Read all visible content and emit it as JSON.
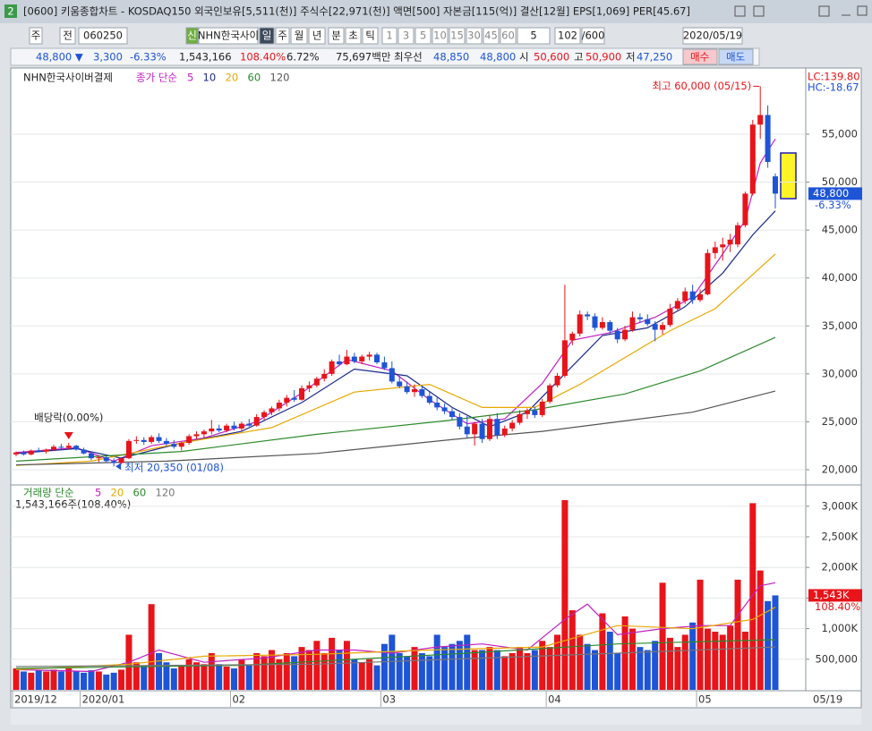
{
  "window": {
    "badge": "2",
    "title": "[0600] 키움종합차트 - KOSDAQ150 외국인보유[5,511(천)] 주식수[22,971(천)] 액면[500] 자본금[115(억)] 결산[12월] EPS[1,069] PER[45.67]"
  },
  "toolbar": {
    "buttons": [
      "주",
      "전",
      "060250",
      "신",
      "NHN한국사이",
      "일",
      "주",
      "월",
      "년",
      "분",
      "초",
      "틱",
      "1",
      "3",
      "5",
      "10",
      "15",
      "30",
      "45",
      "60",
      "5",
      "102",
      "/600",
      "2020/05/19"
    ]
  },
  "quote": {
    "fields": [
      "48,800 ▼",
      "3,300",
      "-6.33%",
      "1,543,166",
      "108.40%",
      "6.72%",
      "75,697백만",
      "최우선",
      "48,850",
      "48,800",
      "시",
      "50,600",
      "고",
      "50,900",
      "저",
      "47,250",
      "매수",
      "매도"
    ]
  },
  "chart_data": [
    {
      "type": "candlestick",
      "title": "NHN한국사이버결제",
      "legend_title": "종가 단순",
      "up_color": "#e8141a",
      "down_color": "#1e54d6",
      "grid": true,
      "ylim": [
        18600,
        60130
      ],
      "yticks": [
        {
          "value": 20000,
          "label": "20,000"
        },
        {
          "value": 25000,
          "label": "25,000"
        },
        {
          "value": 30000,
          "label": "30,000"
        },
        {
          "value": 35000,
          "label": "35,000"
        },
        {
          "value": 40000,
          "label": "40,000"
        },
        {
          "value": 45000,
          "label": "45,000"
        },
        {
          "value": 50000,
          "label": "50,000"
        },
        {
          "value": 55000,
          "label": "55,000"
        }
      ],
      "annotations": [
        "최고 60,000 (05/15)",
        "최저 20,350 (01/08)",
        "배당락(0.00%)"
      ],
      "corner_labels": [
        "LC:139.80",
        "HC:-18.67"
      ],
      "last_label": {
        "value": 48800,
        "label": "48,800",
        "change": "-6.33%"
      },
      "ohlc": [
        [
          21600,
          21900,
          21400,
          21800
        ],
        [
          21800,
          22000,
          21500,
          21600
        ],
        [
          21600,
          22100,
          21500,
          22000
        ],
        [
          22000,
          22300,
          21800,
          21900
        ],
        [
          21900,
          22200,
          21700,
          22100
        ],
        [
          22100,
          22600,
          22000,
          22400
        ],
        [
          22400,
          22700,
          22200,
          22300
        ],
        [
          22300,
          22800,
          22100,
          22500
        ],
        [
          22500,
          22600,
          22000,
          22100
        ],
        [
          22100,
          22300,
          21600,
          21700
        ],
        [
          21700,
          21900,
          21000,
          21200
        ],
        [
          21200,
          21500,
          20800,
          21300
        ],
        [
          21300,
          21400,
          20700,
          20900
        ],
        [
          20900,
          21200,
          20350,
          20700
        ],
        [
          20700,
          21300,
          20600,
          21200
        ],
        [
          21200,
          23200,
          21100,
          23000
        ],
        [
          23000,
          23500,
          22700,
          23100
        ],
        [
          23100,
          23400,
          22600,
          22900
        ],
        [
          22900,
          23600,
          22700,
          23400
        ],
        [
          23400,
          23800,
          22800,
          23000
        ],
        [
          23000,
          23300,
          22500,
          22700
        ],
        [
          22700,
          23100,
          22200,
          22400
        ],
        [
          22400,
          22900,
          22000,
          22800
        ],
        [
          22800,
          23700,
          22600,
          23500
        ],
        [
          23500,
          24000,
          23200,
          23700
        ],
        [
          23700,
          24200,
          23300,
          24000
        ],
        [
          24000,
          25200,
          23700,
          24300
        ],
        [
          24300,
          24700,
          23900,
          24100
        ],
        [
          24100,
          24800,
          23900,
          24600
        ],
        [
          24600,
          25000,
          24100,
          24300
        ],
        [
          24300,
          25000,
          24000,
          24800
        ],
        [
          24800,
          25300,
          24500,
          24600
        ],
        [
          24600,
          25800,
          24500,
          25500
        ],
        [
          25500,
          26200,
          25200,
          26000
        ],
        [
          26000,
          26600,
          25700,
          26400
        ],
        [
          26400,
          27300,
          26100,
          27000
        ],
        [
          27000,
          27800,
          26600,
          27500
        ],
        [
          27500,
          28300,
          27100,
          27300
        ],
        [
          27300,
          28800,
          27200,
          28500
        ],
        [
          28500,
          29200,
          28100,
          28800
        ],
        [
          28800,
          29700,
          28600,
          29500
        ],
        [
          29500,
          30500,
          29200,
          30000
        ],
        [
          30000,
          31500,
          29800,
          31300
        ],
        [
          31300,
          32000,
          30800,
          31000
        ],
        [
          31000,
          32500,
          30900,
          31800
        ],
        [
          31800,
          32200,
          31100,
          31300
        ],
        [
          31300,
          32000,
          31000,
          31800
        ],
        [
          31800,
          32300,
          31400,
          32000
        ],
        [
          32000,
          32200,
          31000,
          31200
        ],
        [
          31200,
          31800,
          30400,
          30600
        ],
        [
          30600,
          31300,
          29000,
          29200
        ],
        [
          29200,
          29800,
          28500,
          28700
        ],
        [
          28700,
          29200,
          27900,
          28100
        ],
        [
          28100,
          28900,
          27600,
          28400
        ],
        [
          28400,
          28700,
          27500,
          27700
        ],
        [
          27700,
          28100,
          26800,
          27000
        ],
        [
          27000,
          27500,
          26200,
          26500
        ],
        [
          26500,
          26900,
          25800,
          26100
        ],
        [
          26100,
          26400,
          25200,
          25500
        ],
        [
          25500,
          25900,
          24200,
          24500
        ],
        [
          24500,
          25600,
          23300,
          23700
        ],
        [
          23700,
          25000,
          22500,
          24800
        ],
        [
          24800,
          25300,
          22800,
          23200
        ],
        [
          23200,
          25700,
          23000,
          25300
        ],
        [
          25300,
          25900,
          23200,
          23600
        ],
        [
          23600,
          24600,
          23400,
          24300
        ],
        [
          24300,
          25200,
          24000,
          24900
        ],
        [
          24900,
          26200,
          24700,
          25800
        ],
        [
          25800,
          26400,
          25300,
          26200
        ],
        [
          26200,
          26600,
          25400,
          25700
        ],
        [
          25700,
          27400,
          25500,
          27100
        ],
        [
          27100,
          29000,
          26900,
          28800
        ],
        [
          28800,
          30100,
          28600,
          29800
        ],
        [
          29800,
          39300,
          29600,
          33500
        ],
        [
          33500,
          34400,
          33000,
          34200
        ],
        [
          34200,
          36600,
          33900,
          36200
        ],
        [
          36200,
          36500,
          35600,
          36000
        ],
        [
          36000,
          36300,
          34500,
          34800
        ],
        [
          34800,
          35900,
          34600,
          35400
        ],
        [
          35400,
          35600,
          34200,
          34500
        ],
        [
          34500,
          34800,
          33200,
          33600
        ],
        [
          33600,
          35000,
          33400,
          34600
        ],
        [
          34600,
          36500,
          34400,
          35900
        ],
        [
          35900,
          36300,
          35300,
          35700
        ],
        [
          35700,
          36200,
          35000,
          35200
        ],
        [
          35200,
          35500,
          33400,
          34600
        ],
        [
          34600,
          35400,
          34100,
          35100
        ],
        [
          35100,
          37300,
          34900,
          36800
        ],
        [
          36800,
          37900,
          36500,
          37600
        ],
        [
          37600,
          39000,
          37300,
          38600
        ],
        [
          38600,
          39300,
          37300,
          37700
        ],
        [
          37700,
          38800,
          37500,
          38300
        ],
        [
          38300,
          43000,
          38200,
          42600
        ],
        [
          42600,
          43800,
          42000,
          43200
        ],
        [
          43200,
          44200,
          41800,
          43500
        ],
        [
          43500,
          44600,
          42700,
          44000
        ],
        [
          43500,
          45800,
          43200,
          45500
        ],
        [
          45500,
          49000,
          45300,
          48800
        ],
        [
          48800,
          56500,
          48600,
          56000
        ],
        [
          56000,
          60000,
          54500,
          57000
        ],
        [
          57000,
          58000,
          51500,
          52100
        ],
        [
          50600,
          50900,
          47250,
          48800
        ]
      ],
      "series": [
        {
          "name": "5",
          "color": "#c21fc2",
          "x": [
            0,
            8,
            13,
            18,
            25,
            32,
            38,
            44,
            50,
            55,
            60,
            65,
            70,
            74,
            79,
            85,
            90,
            94,
            97,
            99,
            101
          ],
          "values": [
            21800,
            22300,
            20900,
            22500,
            23300,
            25000,
            28000,
            31500,
            30300,
            27300,
            24800,
            25300,
            29000,
            33500,
            34300,
            35900,
            38000,
            42500,
            46000,
            52000,
            54500
          ]
        },
        {
          "name": "10",
          "color": "#1c2a8c",
          "x": [
            0,
            8,
            14,
            22,
            30,
            38,
            45,
            52,
            58,
            63,
            68,
            73,
            78,
            84,
            89,
            94,
            98,
            101
          ],
          "values": [
            21700,
            22200,
            21200,
            22800,
            24000,
            27000,
            30500,
            29800,
            26500,
            24500,
            26000,
            30000,
            34000,
            34800,
            37000,
            40500,
            44500,
            47000
          ]
        },
        {
          "name": "20",
          "color": "#e9a800",
          "x": [
            0,
            10,
            22,
            34,
            45,
            55,
            62,
            69,
            75,
            81,
            87,
            93,
            101
          ],
          "values": [
            20450,
            20900,
            22800,
            24400,
            28100,
            28900,
            26500,
            26500,
            28900,
            31700,
            34500,
            36800,
            42500
          ]
        },
        {
          "name": "60",
          "color": "#2c8a2c",
          "x": [
            0,
            22,
            40,
            57,
            69,
            81,
            91,
            101
          ],
          "values": [
            20900,
            21900,
            23700,
            25100,
            26250,
            27900,
            30300,
            33800
          ]
        },
        {
          "name": "120",
          "color": "#555555",
          "x": [
            0,
            20,
            40,
            60,
            70,
            81,
            90,
            101
          ],
          "values": [
            20500,
            20900,
            21700,
            23300,
            24000,
            25100,
            26000,
            28200
          ]
        }
      ]
    },
    {
      "type": "bar",
      "legend_title": "거래량 단순",
      "summary": "1,543,166주(108.40%)",
      "grid": true,
      "ylim": [
        0,
        3260
      ],
      "yticks": [
        {
          "value": 500,
          "label": "500,000"
        },
        {
          "value": 1000,
          "label": "1,000K"
        },
        {
          "value": 1500,
          "label": "1,500K"
        },
        {
          "value": 2000,
          "label": "2,000K"
        },
        {
          "value": 2500,
          "label": "2,500K"
        },
        {
          "value": 3000,
          "label": "3,000K"
        }
      ],
      "last_label": {
        "value": 1543.166,
        "label": "1,543K",
        "change": "108.40%"
      },
      "categories": [
        "2019/12",
        null,
        null,
        null,
        null,
        null,
        null,
        null,
        null,
        "2020/01",
        null,
        null,
        null,
        null,
        null,
        null,
        null,
        null,
        null,
        null,
        null,
        null,
        null,
        null,
        null,
        null,
        null,
        null,
        null,
        "02",
        null,
        null,
        null,
        null,
        null,
        null,
        null,
        null,
        null,
        null,
        null,
        null,
        null,
        null,
        null,
        null,
        null,
        null,
        null,
        "03",
        null,
        null,
        null,
        null,
        null,
        null,
        null,
        null,
        null,
        null,
        null,
        null,
        null,
        null,
        null,
        null,
        null,
        null,
        null,
        null,
        null,
        "04",
        null,
        null,
        null,
        null,
        null,
        null,
        null,
        null,
        null,
        null,
        null,
        null,
        null,
        null,
        null,
        null,
        null,
        null,
        null,
        "05",
        null,
        null,
        null,
        null,
        null,
        null,
        null,
        null,
        null,
        null
      ],
      "x_end_label": "05/19",
      "values": [
        350,
        300,
        280,
        320,
        300,
        330,
        300,
        350,
        300,
        280,
        320,
        300,
        250,
        280,
        330,
        900,
        450,
        400,
        1400,
        600,
        450,
        350,
        380,
        500,
        450,
        420,
        600,
        420,
        380,
        350,
        500,
        400,
        600,
        550,
        650,
        500,
        600,
        550,
        700,
        650,
        800,
        600,
        850,
        650,
        800,
        500,
        450,
        500,
        400,
        750,
        900,
        600,
        550,
        700,
        600,
        550,
        900,
        700,
        750,
        800,
        900,
        650,
        650,
        700,
        650,
        550,
        600,
        700,
        600,
        650,
        800,
        700,
        900,
        3100,
        1300,
        900,
        750,
        650,
        1250,
        950,
        600,
        1200,
        1000,
        700,
        650,
        800,
        1750,
        850,
        700,
        900,
        1100,
        1800,
        1000,
        950,
        900,
        1050,
        1800,
        950,
        3050,
        1950,
        1450,
        1543.166
      ],
      "series": [
        {
          "name": "5",
          "color": "#c21fc2",
          "x": [
            0,
            10,
            15,
            19,
            25,
            33,
            40,
            45,
            50,
            56,
            62,
            68,
            73,
            76,
            80,
            86,
            91,
            95,
            98,
            99,
            101
          ],
          "values": [
            330,
            300,
            450,
            650,
            450,
            520,
            650,
            650,
            600,
            700,
            750,
            650,
            1150,
            1400,
            900,
            1000,
            1050,
            1050,
            1550,
            1700,
            1750
          ]
        },
        {
          "name": "20",
          "color": "#e9a800",
          "x": [
            0,
            15,
            25,
            40,
            55,
            70,
            80,
            90,
            98,
            101
          ],
          "values": [
            330,
            420,
            550,
            580,
            650,
            700,
            1050,
            1000,
            1150,
            1350
          ]
        },
        {
          "name": "60",
          "color": "#2c8a2c",
          "x": [
            0,
            30,
            60,
            80,
            101
          ],
          "values": [
            350,
            400,
            600,
            750,
            820
          ]
        },
        {
          "name": "120",
          "color": "#777777",
          "x": [
            0,
            40,
            80,
            101
          ],
          "values": [
            380,
            420,
            600,
            700
          ]
        }
      ]
    }
  ]
}
